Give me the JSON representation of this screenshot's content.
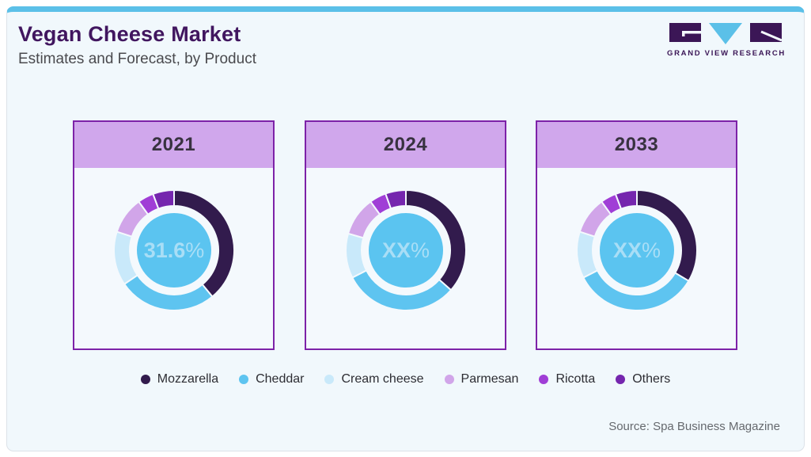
{
  "page": {
    "title": "Vegan Cheese Market",
    "subtitle": "Estimates and Forecast, by Product",
    "brand": "GRAND VIEW RESEARCH",
    "source": "Source: Spa Business Magazine",
    "accent_blue": "#5bc0e8",
    "accent_purple": "#7d22a8",
    "card_header_fill": "#d0a7ec",
    "background": "#f1f8fc"
  },
  "chart_data": {
    "type": "pie",
    "subtype": "donut",
    "title": "Vegan Cheese Market, Estimates and Forecast, by Product",
    "unit": "% share of market",
    "legend_position": "bottom",
    "categories": [
      "Mozzarella",
      "Cheddar",
      "Cream cheese",
      "Parmesan",
      "Ricotta",
      "Others"
    ],
    "palette": [
      "#321b4d",
      "#5ec4f0",
      "#c9e9fa",
      "#d1a5e9",
      "#a03ed6",
      "#7526ae"
    ],
    "center_fill": "#5bc4f0",
    "center_label_color": "#a9def6",
    "charts": [
      {
        "year": "2021",
        "center_label": "31.6%",
        "values": [
          39.0,
          26.5,
          14.5,
          10.0,
          4.3,
          5.7
        ]
      },
      {
        "year": "2024",
        "center_label": "XX%",
        "values": [
          36.5,
          31.0,
          12.0,
          10.5,
          4.5,
          5.5
        ]
      },
      {
        "year": "2033",
        "center_label": "XX%",
        "values": [
          33.5,
          34.0,
          12.5,
          10.0,
          4.2,
          5.8
        ]
      }
    ]
  }
}
